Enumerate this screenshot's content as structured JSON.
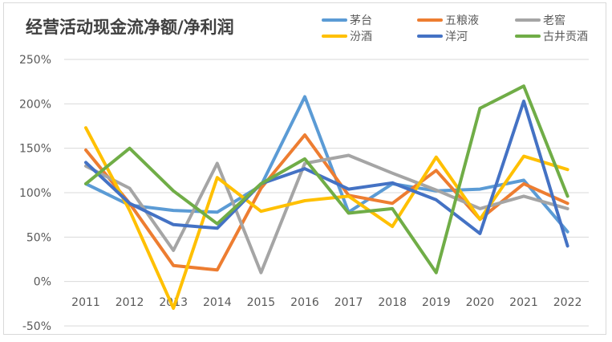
{
  "chart_data": {
    "type": "line",
    "title": "经营活动现金流净额/净利润",
    "xlabel": "",
    "ylabel": "",
    "categories": [
      "2011",
      "2012",
      "2013",
      "2014",
      "2015",
      "2016",
      "2017",
      "2018",
      "2019",
      "2020",
      "2021",
      "2022"
    ],
    "y_ticks": [
      "250%",
      "200%",
      "150%",
      "100%",
      "50%",
      "0%",
      "-50%"
    ],
    "ylim": [
      -50,
      250
    ],
    "grid": true,
    "legend_position": "top-right",
    "series": [
      {
        "name": "茅台",
        "color": "#5b9bd5",
        "values": [
          110,
          86,
          80,
          78,
          108,
          208,
          78,
          110,
          102,
          104,
          114,
          56
        ]
      },
      {
        "name": "五粮液",
        "color": "#ed7d31",
        "values": [
          148,
          88,
          18,
          13,
          105,
          165,
          97,
          88,
          125,
          70,
          110,
          88
        ]
      },
      {
        "name": "老窖",
        "color": "#a5a5a5",
        "values": [
          130,
          105,
          35,
          133,
          10,
          133,
          142,
          122,
          103,
          82,
          96,
          82
        ]
      },
      {
        "name": "汾酒",
        "color": "#ffc000",
        "values": [
          173,
          80,
          -30,
          117,
          79,
          91,
          96,
          62,
          140,
          70,
          141,
          126
        ]
      },
      {
        "name": "洋河",
        "color": "#4472c4",
        "values": [
          134,
          88,
          64,
          60,
          110,
          127,
          104,
          111,
          92,
          54,
          203,
          40
        ]
      },
      {
        "name": "古井贡酒",
        "color": "#70ad47",
        "values": [
          110,
          150,
          102,
          65,
          110,
          138,
          77,
          82,
          10,
          195,
          220,
          96
        ]
      }
    ]
  }
}
